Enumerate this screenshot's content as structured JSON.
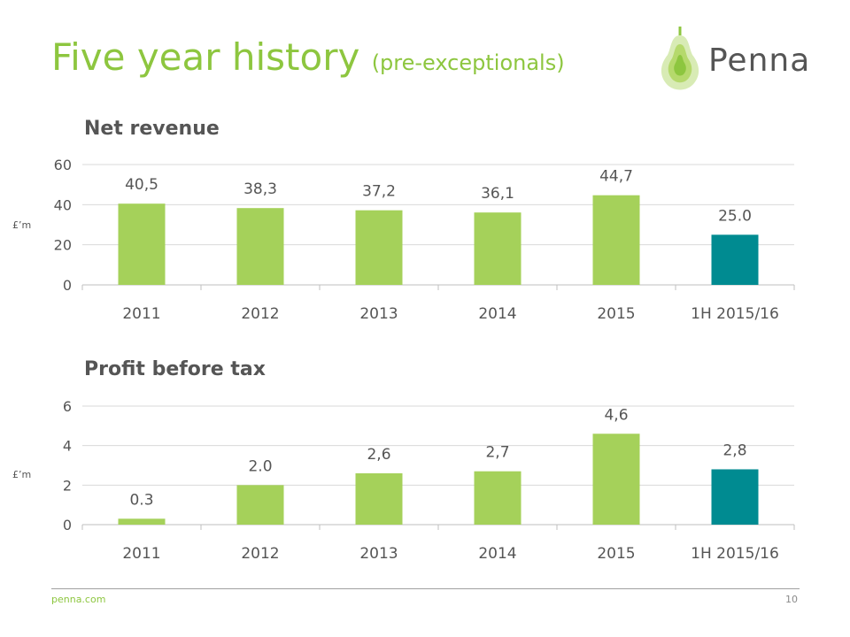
{
  "header": {
    "title": "Five year history",
    "subtitle": "(pre-exceptionals)"
  },
  "logo": {
    "wordmark": "Penna",
    "icon": "pear-icon"
  },
  "colors": {
    "actual": "#a5d15a",
    "interim": "#008b91",
    "title": "#8dc63f",
    "text": "#555555",
    "grid": "#d9d9d9"
  },
  "chart_data": [
    {
      "type": "bar",
      "title": "Net revenue",
      "ylabel": "£’m",
      "categories": [
        "2011",
        "2012",
        "2013",
        "2014",
        "2015",
        "1H 2015/16"
      ],
      "values": [
        40.5,
        38.3,
        37.2,
        36.1,
        44.7,
        25.0
      ],
      "value_labels": [
        "40,5",
        "38,3",
        "37,2",
        "36,1",
        "44,7",
        "25.0"
      ],
      "highlight_index": 5,
      "ylim": [
        0,
        60
      ],
      "yticks": [
        0,
        20,
        40,
        60
      ],
      "ytick_labels": [
        "0",
        "20",
        "40",
        "60"
      ],
      "grid": true
    },
    {
      "type": "bar",
      "title": "Profit before tax",
      "ylabel": "£’m",
      "categories": [
        "2011",
        "2012",
        "2013",
        "2014",
        "2015",
        "1H 2015/16"
      ],
      "values": [
        0.3,
        2.0,
        2.6,
        2.7,
        4.6,
        2.8
      ],
      "value_labels": [
        "0.3",
        "2.0",
        "2,6",
        "2,7",
        "4,6",
        "2,8"
      ],
      "highlight_index": 5,
      "ylim": [
        0,
        6
      ],
      "yticks": [
        0,
        2,
        4,
        6
      ],
      "ytick_labels": [
        "0",
        "2",
        "4",
        "6"
      ],
      "grid": true
    }
  ],
  "footer": {
    "site": "penna.com",
    "page": "10"
  }
}
